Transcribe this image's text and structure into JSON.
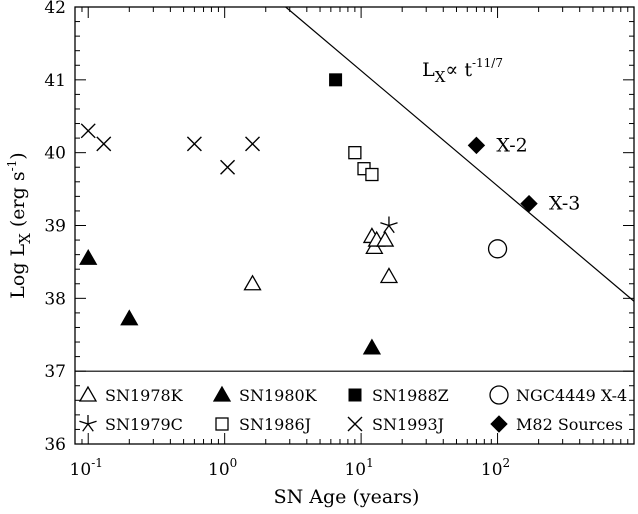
{
  "chart_data": {
    "type": "scatter",
    "xlabel": "SN Age (years)",
    "ylabel_main": "Log L",
    "ylabel_sub": "X",
    "ylabel_units": "(erg s",
    "ylabel_units_exp": "-1",
    "ylabel_units_close": ")",
    "xscale": "log",
    "xlim": [
      0.08,
      1000
    ],
    "ylim": [
      36,
      42
    ],
    "x_ticks": [
      {
        "value": 0.1,
        "base": "10",
        "exp": "-1"
      },
      {
        "value": 1,
        "base": "10",
        "exp": "0"
      },
      {
        "value": 10,
        "base": "10",
        "exp": "1"
      },
      {
        "value": 100,
        "base": "10",
        "exp": "2"
      }
    ],
    "y_ticks": [
      {
        "value": 36,
        "label": "36"
      },
      {
        "value": 37,
        "label": "37"
      },
      {
        "value": 38,
        "label": "38"
      },
      {
        "value": 39,
        "label": "39"
      },
      {
        "value": 40,
        "label": "40"
      },
      {
        "value": 41,
        "label": "41"
      },
      {
        "value": 42,
        "label": "42"
      }
    ],
    "legend_separator_y": 37.0,
    "grid": false,
    "series": [
      {
        "name": "SN1978K",
        "marker": "triangle-open",
        "points": [
          [
            1.6,
            38.2
          ],
          [
            12,
            38.85
          ],
          [
            12.5,
            38.7
          ],
          [
            13,
            38.8
          ],
          [
            15,
            38.8
          ],
          [
            16,
            38.3
          ]
        ]
      },
      {
        "name": "SN1980K",
        "marker": "triangle-filled",
        "points": [
          [
            0.1,
            38.55
          ],
          [
            0.2,
            37.72
          ],
          [
            12,
            37.32
          ]
        ]
      },
      {
        "name": "SN1988Z",
        "marker": "square-filled",
        "points": [
          [
            6.5,
            41.0
          ]
        ]
      },
      {
        "name": "NGC4449 X-4",
        "marker": "circle-open",
        "points": [
          [
            100,
            38.68
          ]
        ]
      },
      {
        "name": "SN1979C",
        "marker": "asterisk",
        "points": [
          [
            16,
            39.0
          ]
        ]
      },
      {
        "name": "SN1986J",
        "marker": "square-open",
        "points": [
          [
            9,
            40.0
          ],
          [
            10.5,
            39.78
          ],
          [
            12,
            39.7
          ]
        ]
      },
      {
        "name": "SN1993J",
        "marker": "cross",
        "points": [
          [
            0.1,
            40.3
          ],
          [
            0.13,
            40.12
          ],
          [
            0.6,
            40.12
          ],
          [
            1.05,
            39.8
          ],
          [
            1.6,
            40.12
          ]
        ]
      },
      {
        "name": "M82 Sources",
        "marker": "diamond-filled",
        "points": [
          [
            70,
            40.1
          ],
          [
            170,
            39.3
          ]
        ]
      }
    ],
    "point_labels": [
      {
        "text": "X-2",
        "x": 70,
        "y": 40.1
      },
      {
        "text": "X-3",
        "x": 170,
        "y": 39.3
      }
    ],
    "fit_line": {
      "label_base": "L",
      "label_sub": "X",
      "label_rest": "∝ t",
      "label_exp": "-11/7",
      "label_x": 28,
      "label_y": 41.05,
      "points": [
        [
          2.8,
          42.0
        ],
        [
          1000,
          37.96
        ]
      ]
    },
    "legend": [
      {
        "name": "SN1978K",
        "marker": "triangle-open"
      },
      {
        "name": "SN1980K",
        "marker": "triangle-filled"
      },
      {
        "name": "SN1988Z",
        "marker": "square-filled"
      },
      {
        "name": "NGC4449 X-4",
        "marker": "circle-open"
      },
      {
        "name": "SN1979C",
        "marker": "asterisk"
      },
      {
        "name": "SN1986J",
        "marker": "square-open"
      },
      {
        "name": "SN1993J",
        "marker": "cross"
      },
      {
        "name": "M82 Sources",
        "marker": "diamond-filled"
      }
    ]
  }
}
